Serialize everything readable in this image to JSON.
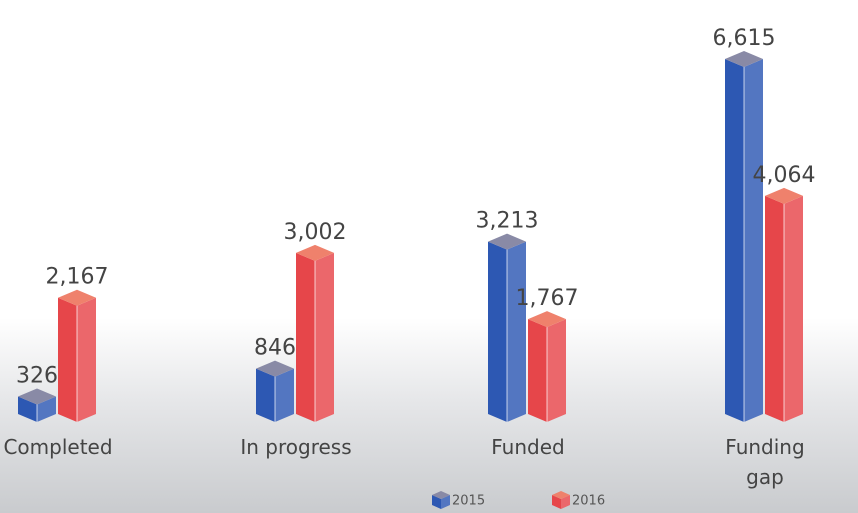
{
  "chart_data": {
    "type": "bar3d",
    "categories": [
      "Completed",
      "In progress",
      "Funded",
      "Funding gap"
    ],
    "series": [
      {
        "name": "2015",
        "color": "#2d58b3",
        "values": [
          326,
          846,
          3213,
          6615
        ],
        "value_labels": [
          "326",
          "846",
          "3,213",
          "6,615"
        ]
      },
      {
        "name": "2016",
        "color": "#e6464a",
        "values": [
          2167,
          3002,
          1767,
          4064
        ],
        "value_labels": [
          "2,167",
          "3,002",
          "1,767",
          "4,064"
        ]
      }
    ]
  }
}
